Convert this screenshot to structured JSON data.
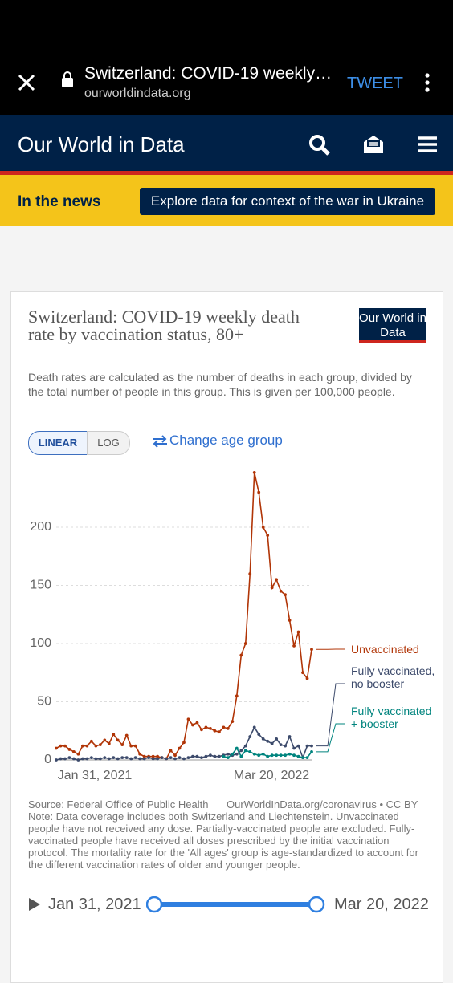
{
  "browser": {
    "page_title": "Switzerland: COVID-19 weekly…",
    "url": "ourworldindata.org",
    "action": "TWEET"
  },
  "site": {
    "name": "Our World in Data",
    "news_label": "In the news",
    "news_link": "Explore data for context of the war in Ukraine"
  },
  "chart_data": {
    "type": "line",
    "title": "Switzerland: COVID-19 weekly death rate by vaccination status, 80+",
    "subtitle": "Death rates are calculated as the number of deaths in each group, divided by the total number of people in this group. This is given per 100,000 people.",
    "logo": "Our World in Data",
    "scale_buttons": [
      "LINEAR",
      "LOG"
    ],
    "age_button": "Change age group",
    "categories": [
      "Jan 31, 2021",
      null,
      null,
      null,
      null,
      null,
      null,
      null,
      null,
      null,
      null,
      null,
      null,
      null,
      null,
      null,
      null,
      null,
      null,
      null,
      null,
      null,
      null,
      null,
      null,
      null,
      null,
      null,
      null,
      null,
      null,
      null,
      null,
      null,
      null,
      null,
      null,
      null,
      null,
      null,
      null,
      null,
      null,
      null,
      null,
      null,
      null,
      null,
      null,
      null,
      null,
      null,
      null,
      null,
      null,
      null,
      null,
      null,
      "Mar 20, 2022"
    ],
    "series": [
      {
        "name": "Unvaccinated",
        "color": "#b13507",
        "values": [
          10,
          12,
          12,
          9,
          7,
          5,
          12,
          12,
          16,
          12,
          13,
          17,
          14,
          22,
          17,
          13,
          21,
          12,
          12,
          5,
          3,
          3,
          3,
          3,
          2,
          1,
          8,
          4,
          10,
          15,
          35,
          30,
          32,
          26,
          28,
          27,
          25,
          24,
          28,
          27,
          33,
          55,
          90,
          100,
          160,
          247,
          230,
          200,
          193,
          148,
          155,
          145,
          142,
          120,
          98,
          110,
          75,
          70,
          95
        ]
      },
      {
        "name": "Fully vaccinated, no booster",
        "color": "#3c4a6b",
        "values": [
          0,
          1,
          1,
          2,
          1,
          0,
          1,
          1,
          2,
          1,
          1,
          2,
          1,
          2,
          1,
          2,
          2,
          1,
          2,
          1,
          1,
          2,
          1,
          1,
          2,
          1,
          2,
          1,
          2,
          1,
          2,
          3,
          3,
          2,
          3,
          4,
          3,
          3,
          4,
          5,
          4,
          5,
          8,
          12,
          20,
          28,
          22,
          18,
          16,
          14,
          18,
          13,
          12,
          20,
          10,
          12,
          2,
          12,
          12
        ]
      },
      {
        "name": "Fully vaccinated + booster",
        "color": "#00847e",
        "values": [
          null,
          null,
          null,
          null,
          null,
          null,
          null,
          null,
          null,
          null,
          null,
          null,
          null,
          null,
          null,
          null,
          null,
          null,
          null,
          null,
          null,
          null,
          null,
          null,
          null,
          null,
          null,
          null,
          null,
          null,
          null,
          null,
          null,
          null,
          null,
          null,
          null,
          null,
          3,
          2,
          5,
          10,
          3,
          8,
          7,
          5,
          4,
          5,
          3,
          4,
          4,
          4,
          4,
          5,
          4,
          3,
          2,
          2,
          7
        ]
      }
    ],
    "ylim": [
      0,
      250
    ],
    "yticks": [
      0,
      50,
      100,
      150,
      200
    ],
    "grid": true,
    "source": "Source: Federal Office of Public Health",
    "source_link": "OurWorldInData.org/coronavirus • CC BY",
    "note": "Note: Data coverage includes both Switzerland and Liechtenstein. Unvaccinated people have not received any dose. Partially-vaccinated people are excluded. Fully-vaccinated people have received all doses prescribed by the initial vaccination protocol. The mortality rate for the 'All ages' group is age-standardized to account for the different vaccination rates of older and younger people."
  },
  "timeline": {
    "start": "Jan 31, 2021",
    "end": "Mar 20, 2022"
  }
}
